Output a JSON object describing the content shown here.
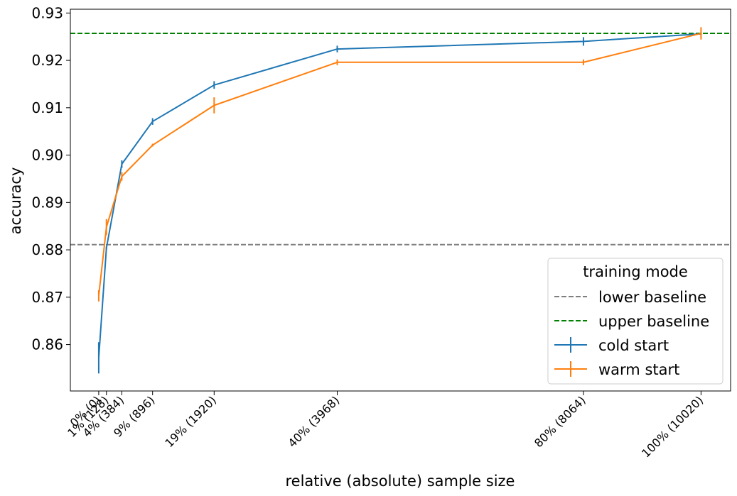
{
  "chart_data": {
    "type": "line",
    "title": "",
    "xlabel": "relative (absolute) sample size",
    "ylabel": "accuracy",
    "ylim": [
      0.8502,
      0.9308
    ],
    "xlim": [
      -472,
      10512
    ],
    "x_ticks": [
      {
        "x": 0,
        "label": "0% (0)"
      },
      {
        "x": 128,
        "label": "1% (128)"
      },
      {
        "x": 384,
        "label": "4% (384)"
      },
      {
        "x": 896,
        "label": "9% (896)"
      },
      {
        "x": 1920,
        "label": "19% (1920)"
      },
      {
        "x": 3968,
        "label": "40% (3968)"
      },
      {
        "x": 8064,
        "label": "80% (8064)"
      },
      {
        "x": 10020,
        "label": "100% (10020)"
      }
    ],
    "y_ticks": [
      {
        "y": 0.86,
        "label": "0.86"
      },
      {
        "y": 0.87,
        "label": "0.87"
      },
      {
        "y": 0.88,
        "label": "0.88"
      },
      {
        "y": 0.89,
        "label": "0.89"
      },
      {
        "y": 0.9,
        "label": "0.90"
      },
      {
        "y": 0.91,
        "label": "0.91"
      },
      {
        "y": 0.92,
        "label": "0.92"
      },
      {
        "y": 0.93,
        "label": "0.93"
      }
    ],
    "baselines": [
      {
        "name": "lower baseline",
        "y": 0.8811,
        "color": "#7f7f7f",
        "dash": true
      },
      {
        "name": "upper baseline",
        "y": 0.9257,
        "color": "#008000",
        "dash": true
      }
    ],
    "series": [
      {
        "name": "cold start",
        "color": "#1f77b4",
        "x": [
          0,
          128,
          384,
          896,
          1920,
          3968,
          8064,
          10020
        ],
        "values": [
          0.8572,
          0.8804,
          0.8981,
          0.9071,
          0.9148,
          0.9224,
          0.924,
          0.9256
        ],
        "errors": [
          0.0033,
          0.0003,
          0.0008,
          0.0007,
          0.0008,
          0.0007,
          0.0009,
          0.0003
        ]
      },
      {
        "name": "warm start",
        "color": "#ff7f0e",
        "x": [
          0,
          128,
          384,
          896,
          1920,
          3968,
          8064,
          10020
        ],
        "values": [
          0.8703,
          0.8848,
          0.8955,
          0.9021,
          0.9105,
          0.9196,
          0.9196,
          0.9257
        ],
        "errors": [
          0.0012,
          0.0017,
          0.0009,
          0.0003,
          0.0017,
          0.0006,
          0.0006,
          0.0013
        ]
      }
    ],
    "legend": {
      "title": "training mode",
      "placement": "lower-right",
      "entries": [
        "lower baseline",
        "upper baseline",
        "cold start",
        "warm start"
      ]
    },
    "grid": false
  }
}
